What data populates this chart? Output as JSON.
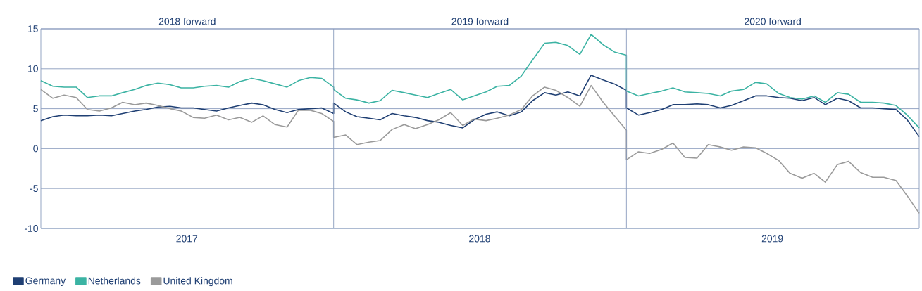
{
  "chart_data": {
    "type": "line",
    "annotations": [
      "2018 forward",
      "2019 forward",
      "2020 forward"
    ],
    "xlim": [
      "2017-01-01",
      "2020-01-01"
    ],
    "xticks": [
      {
        "value": "2017-07-02",
        "label": "2017"
      },
      {
        "value": "2018-07-02",
        "label": "2018"
      },
      {
        "value": "2019-07-02",
        "label": "2019"
      }
    ],
    "ylim": [
      -10,
      15
    ],
    "yticks": [
      -10,
      -5,
      0,
      5,
      10,
      15
    ],
    "grid": "y",
    "legend": "bottom",
    "ref_lines": [
      {
        "axis": "x",
        "value": "2018-01-01",
        "color": "#8a9bbd"
      },
      {
        "axis": "x",
        "value": "2019-01-01",
        "color": "#8a9bbd"
      }
    ],
    "x": [
      "2017-01-01",
      "2017-01-16",
      "2017-01-30",
      "2017-02-14",
      "2017-02-28",
      "2017-03-15",
      "2017-03-30",
      "2017-04-13",
      "2017-04-28",
      "2017-05-12",
      "2017-05-27",
      "2017-06-11",
      "2017-06-25",
      "2017-07-10",
      "2017-07-24",
      "2017-08-08",
      "2017-08-23",
      "2017-09-06",
      "2017-09-21",
      "2017-10-05",
      "2017-10-20",
      "2017-11-04",
      "2017-11-18",
      "2017-12-03",
      "2017-12-17",
      "2018-01-01",
      "2018-01-01",
      "2018-01-16",
      "2018-01-30",
      "2018-02-14",
      "2018-02-28",
      "2018-03-15",
      "2018-03-30",
      "2018-04-13",
      "2018-04-28",
      "2018-05-12",
      "2018-05-27",
      "2018-06-11",
      "2018-06-25",
      "2018-07-10",
      "2018-07-24",
      "2018-08-08",
      "2018-08-23",
      "2018-09-06",
      "2018-09-21",
      "2018-10-05",
      "2018-10-20",
      "2018-11-04",
      "2018-11-18",
      "2018-12-03",
      "2018-12-17",
      "2019-01-01",
      "2019-01-01",
      "2019-01-16",
      "2019-01-30",
      "2019-02-14",
      "2019-02-28",
      "2019-03-15",
      "2019-03-30",
      "2019-04-13",
      "2019-04-28",
      "2019-05-12",
      "2019-05-27",
      "2019-06-11",
      "2019-06-25",
      "2019-07-10",
      "2019-07-24",
      "2019-08-08",
      "2019-08-23",
      "2019-09-06",
      "2019-09-21",
      "2019-10-05",
      "2019-10-20",
      "2019-11-04",
      "2019-11-18",
      "2019-12-03",
      "2019-12-17",
      "2020-01-01"
    ],
    "series": [
      {
        "name": "Germany",
        "color": "#1f3f73",
        "values": [
          3.5,
          4.0,
          4.2,
          4.1,
          4.1,
          4.2,
          4.1,
          4.4,
          4.7,
          4.9,
          5.2,
          5.3,
          5.1,
          5.1,
          4.9,
          4.7,
          5.1,
          5.4,
          5.7,
          5.5,
          4.9,
          4.5,
          4.9,
          5.0,
          5.1,
          4.4,
          5.7,
          4.6,
          4.0,
          3.8,
          3.6,
          4.4,
          4.1,
          3.9,
          3.5,
          3.3,
          2.9,
          2.6,
          3.6,
          4.3,
          4.6,
          4.1,
          4.6,
          6.0,
          7.0,
          6.7,
          7.1,
          6.6,
          9.2,
          8.6,
          8.1,
          7.3,
          5.1,
          4.2,
          4.5,
          4.9,
          5.5,
          5.5,
          5.6,
          5.5,
          5.1,
          5.4,
          6.0,
          6.6,
          6.6,
          6.4,
          6.3,
          6.0,
          6.4,
          5.5,
          6.3,
          6.0,
          5.1,
          5.1,
          5.0,
          4.9,
          3.6,
          1.5
        ]
      },
      {
        "name": "Netherlands",
        "color": "#3bb3a3",
        "values": [
          8.5,
          7.8,
          7.7,
          7.7,
          6.4,
          6.6,
          6.6,
          7.0,
          7.4,
          7.9,
          8.2,
          8.0,
          7.6,
          7.6,
          7.8,
          7.9,
          7.7,
          8.4,
          8.8,
          8.5,
          8.1,
          7.7,
          8.5,
          8.9,
          8.8,
          7.7,
          7.4,
          6.3,
          6.1,
          5.7,
          6.0,
          7.3,
          7.0,
          6.7,
          6.4,
          6.9,
          7.4,
          6.1,
          6.6,
          7.1,
          7.8,
          7.9,
          9.1,
          11.1,
          13.2,
          13.3,
          12.9,
          11.8,
          14.3,
          13.0,
          12.1,
          11.7,
          7.2,
          6.6,
          6.9,
          7.2,
          7.6,
          7.1,
          7.0,
          6.9,
          6.6,
          7.2,
          7.4,
          8.3,
          8.1,
          6.9,
          6.4,
          6.2,
          6.6,
          5.8,
          7.0,
          6.8,
          5.8,
          5.8,
          5.7,
          5.4,
          4.2,
          2.6
        ]
      },
      {
        "name": "United Kingdom",
        "color": "#9a9a9a",
        "values": [
          7.4,
          6.3,
          6.7,
          6.4,
          4.9,
          4.7,
          5.1,
          5.8,
          5.5,
          5.7,
          5.4,
          5.0,
          4.7,
          3.9,
          3.8,
          4.2,
          3.6,
          3.9,
          3.3,
          4.1,
          3.0,
          2.7,
          4.8,
          4.8,
          4.4,
          3.4,
          1.4,
          1.7,
          0.5,
          0.8,
          1.0,
          2.4,
          3.0,
          2.5,
          3.0,
          3.6,
          4.5,
          2.9,
          3.7,
          3.5,
          3.8,
          4.2,
          4.9,
          6.6,
          7.7,
          7.3,
          6.4,
          5.3,
          7.9,
          5.8,
          4.1,
          2.3,
          -1.4,
          -0.4,
          -0.6,
          -0.1,
          0.7,
          -1.1,
          -1.2,
          0.5,
          0.2,
          -0.2,
          0.2,
          0.1,
          -0.6,
          -1.5,
          -3.1,
          -3.7,
          -3.1,
          -4.2,
          -2.0,
          -1.6,
          -3.0,
          -3.6,
          -3.6,
          -4.0,
          -5.9,
          -8.1
        ]
      }
    ]
  }
}
